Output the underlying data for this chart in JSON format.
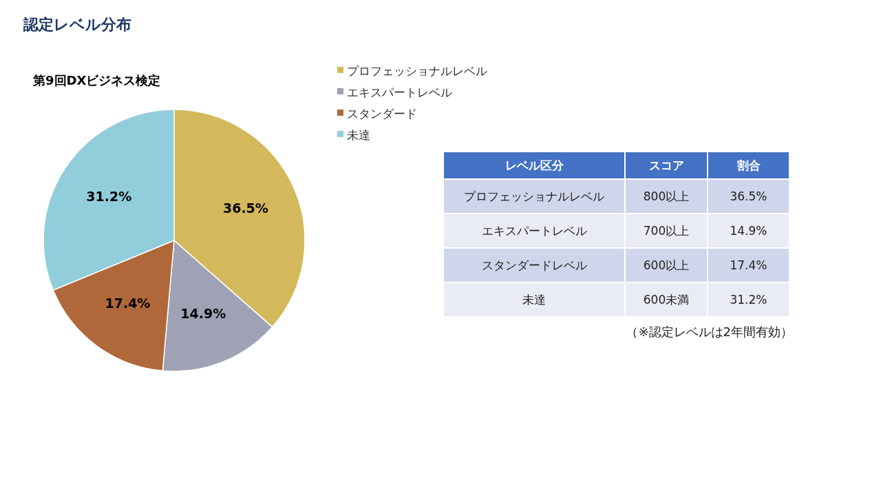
{
  "chart_data": [
    {
      "type": "pie",
      "title": "認定レベル分布",
      "subtitle": "第9回DXビジネス検定",
      "categories": [
        "プロフェッショナルレベル",
        "エキスパートレベル",
        "スタンダード",
        "未達"
      ],
      "values": [
        36.5,
        14.9,
        17.4,
        31.2
      ],
      "colors": [
        "#d4b85c",
        "#9ea2b4",
        "#b0683a",
        "#92cddc"
      ],
      "value_labels": [
        "36.5%",
        "14.9%",
        "17.4%",
        "31.2%"
      ],
      "legend": "top right"
    },
    {
      "type": "other",
      "annotations": [
        "レベル区分",
        "スコア",
        "割合",
        "プロフェッショナルレベル",
        "800以上",
        "36.5%",
        "エキスパートレベル",
        "700以上",
        "14.9%",
        "スタンダードレベル",
        "600以上",
        "17.4%",
        "未達",
        "600未満",
        "31.2%",
        "（※認定レベルは2年間有効）"
      ]
    }
  ]
}
